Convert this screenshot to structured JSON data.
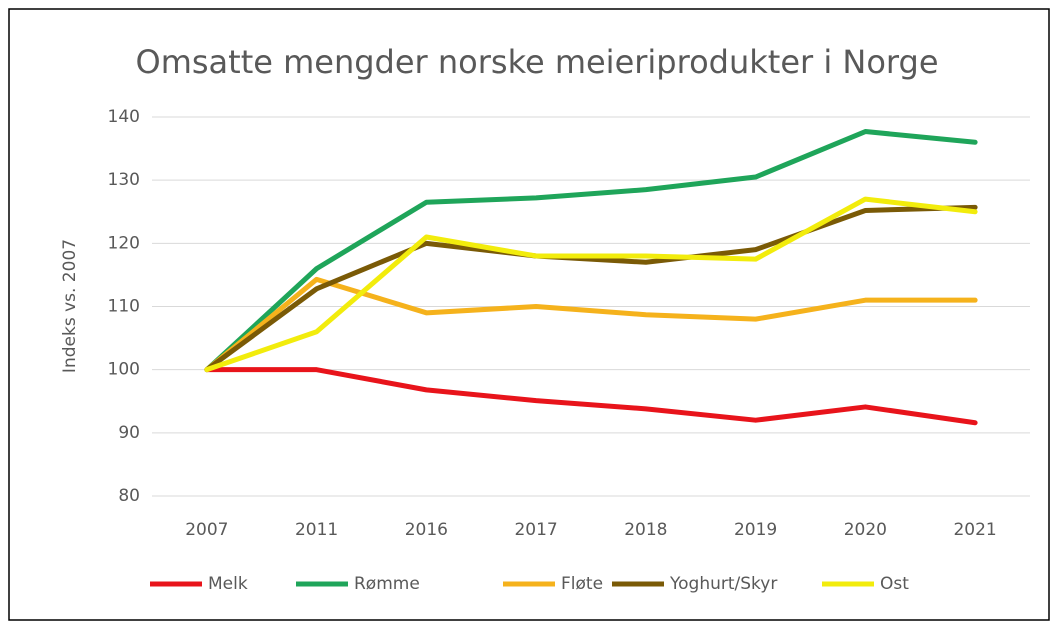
{
  "chart_data": {
    "type": "line",
    "title": "Omsatte mengder norske meieriprodukter i Norge",
    "y_label": "Indeks vs. 2007",
    "categories": [
      "2007",
      "2011",
      "2016",
      "2017",
      "2018",
      "2019",
      "2020",
      "2021"
    ],
    "series": [
      {
        "name": "Melk",
        "color": "#e8141b",
        "values": [
          100,
          100,
          96.8,
          95.1,
          93.8,
          92,
          94.1,
          91.6
        ]
      },
      {
        "name": "Rømme",
        "color": "#1fa55a",
        "values": [
          100,
          116,
          126.5,
          127.2,
          128.5,
          130.5,
          137.7,
          136
        ]
      },
      {
        "name": "Fløte",
        "color": "#f5b21c",
        "values": [
          100,
          114.3,
          109,
          110,
          108.7,
          108,
          111,
          111
        ]
      },
      {
        "name": "Yoghurt/Skyr",
        "color": "#7a5a06",
        "values": [
          100,
          112.8,
          120,
          118,
          117,
          119,
          125.2,
          125.7
        ]
      },
      {
        "name": "Ost",
        "color": "#f2ec0c",
        "values": [
          100,
          106,
          121,
          118,
          118,
          117.5,
          127,
          125
        ]
      }
    ],
    "ylim": [
      80,
      140
    ],
    "yticks": [
      80,
      90,
      100,
      110,
      120,
      130,
      140
    ],
    "grid": true,
    "legend": "bottom"
  }
}
